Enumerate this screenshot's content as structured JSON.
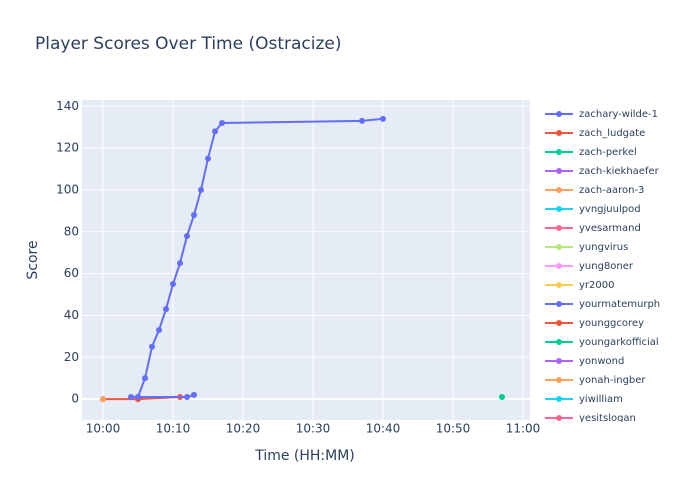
{
  "chart_data": {
    "type": "line",
    "title": "Player Scores Over Time (Ostracize)",
    "x_label": "Time (HH:MM)",
    "y_label": "Score",
    "xlim": [
      "09:57",
      "11:01"
    ],
    "xticks": [
      "10:00",
      "10:10",
      "10:20",
      "10:30",
      "10:40",
      "10:50",
      "11:00"
    ],
    "ylim": [
      -10,
      143
    ],
    "yticks": [
      0,
      20,
      40,
      60,
      80,
      100,
      120,
      140
    ],
    "grid": true,
    "legend_position": "right",
    "series": [
      {
        "name": "zachary-wilde-1",
        "color": "#636efa",
        "x": [
          "10:05",
          "10:06",
          "10:07",
          "10:08",
          "10:09",
          "10:10",
          "10:11",
          "10:12",
          "10:13",
          "10:14",
          "10:15",
          "10:16",
          "10:17",
          "10:37",
          "10:40"
        ],
        "values": [
          1,
          10,
          25,
          33,
          43,
          55,
          65,
          78,
          88,
          100,
          115,
          128,
          132,
          133,
          134
        ]
      },
      {
        "name": "zach_ludgate",
        "color": "#EF553B",
        "x": [
          "10:00",
          "10:05",
          "10:11"
        ],
        "values": [
          0,
          0,
          1
        ]
      },
      {
        "name": "zach-perkel",
        "color": "#00cc96",
        "x": [
          "10:57"
        ],
        "values": [
          1
        ]
      },
      {
        "name": "zach-kiekhaefer",
        "color": "#ab63fa",
        "x": [],
        "values": []
      },
      {
        "name": "zach-aaron-3",
        "color": "#FFA15A",
        "x": [
          "10:00"
        ],
        "values": [
          0
        ]
      },
      {
        "name": "yvngjuulpod",
        "color": "#19d3f3",
        "x": [],
        "values": []
      },
      {
        "name": "yvesarmand",
        "color": "#FF6692",
        "x": [],
        "values": []
      },
      {
        "name": "yungvirus",
        "color": "#B6E880",
        "x": [],
        "values": []
      },
      {
        "name": "yung8oner",
        "color": "#FF97FF",
        "x": [],
        "values": []
      },
      {
        "name": "yr2000",
        "color": "#FECB52",
        "x": [],
        "values": []
      },
      {
        "name": "yourmatemurph",
        "color": "#636efa",
        "x": [
          "10:04",
          "10:05",
          "10:12",
          "10:13"
        ],
        "values": [
          1,
          1,
          1,
          2
        ]
      },
      {
        "name": "younggcorey",
        "color": "#EF553B",
        "x": [],
        "values": []
      },
      {
        "name": "youngarkofficial",
        "color": "#00cc96",
        "x": [],
        "values": []
      },
      {
        "name": "yonwond",
        "color": "#ab63fa",
        "x": [],
        "values": []
      },
      {
        "name": "yonah-ingber",
        "color": "#FFA15A",
        "x": [],
        "values": []
      },
      {
        "name": "yiwilliam",
        "color": "#19d3f3",
        "x": [],
        "values": []
      },
      {
        "name": "yesitslogan",
        "color": "#FF6692",
        "x": [],
        "values": []
      }
    ]
  }
}
